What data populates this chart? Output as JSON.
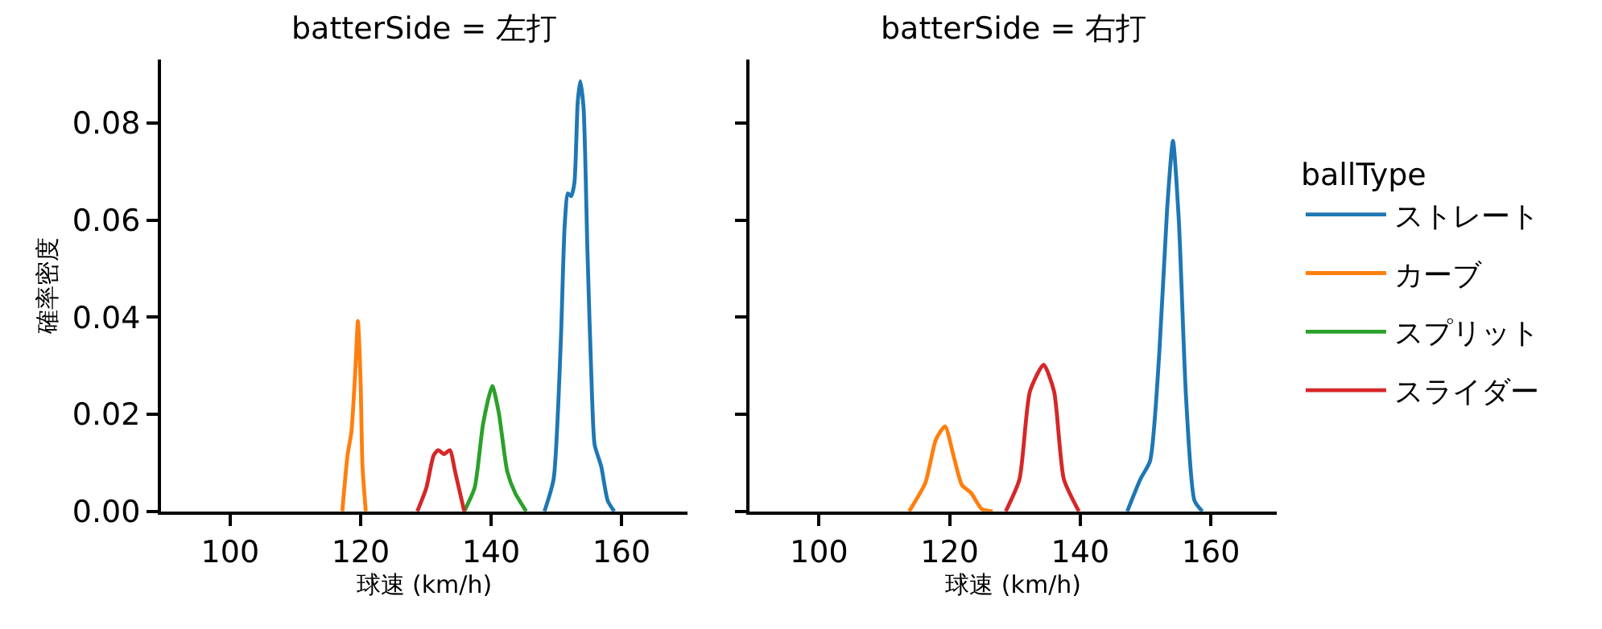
{
  "chart_data": [
    {
      "type": "line",
      "title": "batterSide = 左打",
      "xlabel": "球速 (km/h)",
      "ylabel": "確率密度",
      "xlim": [
        89.4,
        170.1
      ],
      "ylim": [
        0,
        0.093
      ],
      "xticks": [
        100,
        120,
        140,
        160
      ],
      "yticks": [
        {
          "value": 0,
          "label": "0.00"
        },
        {
          "value": 0.02,
          "label": "0.02"
        },
        {
          "value": 0.04,
          "label": "0.04"
        },
        {
          "value": 0.06,
          "label": "0.06"
        },
        {
          "value": 0.08,
          "label": "0.08"
        }
      ],
      "legend": "right",
      "series": [
        {
          "name": "ストレート",
          "color": "#1f77b4",
          "x": [
            148.2,
            149.6,
            150.7,
            151.3,
            151.8,
            152.3,
            152.8,
            153.3,
            153.7,
            154.2,
            154.8,
            155.5,
            155.9,
            156.9,
            157.9,
            158.9
          ],
          "values": [
            0,
            0.0066,
            0.0346,
            0.0588,
            0.0655,
            0.0649,
            0.0677,
            0.0842,
            0.0886,
            0.0831,
            0.0533,
            0.0236,
            0.0137,
            0.0093,
            0.0022,
            0
          ]
        },
        {
          "name": "カーブ",
          "color": "#ff7f0e",
          "x": [
            117.2,
            118.0,
            118.6,
            119.2,
            119.6,
            120.0,
            120.3,
            120.8
          ],
          "values": [
            0,
            0.0115,
            0.0164,
            0.029,
            0.0392,
            0.027,
            0.0093,
            0
          ]
        },
        {
          "name": "スプリット",
          "color": "#2ca02c",
          "x": [
            135.9,
            137.5,
            138.8,
            140.2,
            141.2,
            142.5,
            143.7,
            145.4
          ],
          "values": [
            0,
            0.0049,
            0.0181,
            0.0258,
            0.0203,
            0.0082,
            0.0038,
            0
          ]
        },
        {
          "name": "スライダー",
          "color": "#d62728",
          "x": [
            128.7,
            130.1,
            131.2,
            131.9,
            132.8,
            133.7,
            134.5,
            135.9
          ],
          "values": [
            0,
            0.0049,
            0.0115,
            0.0126,
            0.0118,
            0.0126,
            0.0082,
            0
          ]
        }
      ]
    },
    {
      "type": "line",
      "title": "batterSide = 右打",
      "xlabel": "球速 (km/h)",
      "xlim": [
        89.4,
        170.1
      ],
      "ylim": [
        0,
        0.093
      ],
      "xticks": [
        100,
        120,
        140,
        160
      ],
      "yticks": [
        {
          "value": 0,
          "label": null
        },
        {
          "value": 0.02,
          "label": null
        },
        {
          "value": 0.04,
          "label": null
        },
        {
          "value": 0.06,
          "label": null
        },
        {
          "value": 0.08,
          "label": null
        }
      ],
      "tick_labels": "x",
      "legend": "right",
      "legend_title": "ballType",
      "series": [
        {
          "name": "ストレート",
          "color": "#1f77b4",
          "x": [
            147.2,
            149.2,
            150.7,
            152.1,
            153.3,
            154.2,
            155.1,
            156.2,
            157.5,
            158.7
          ],
          "values": [
            0,
            0.0066,
            0.0104,
            0.0324,
            0.0621,
            0.0763,
            0.0599,
            0.0236,
            0.0022,
            0
          ]
        },
        {
          "name": "カーブ",
          "color": "#ff7f0e",
          "x": [
            113.8,
            116.3,
            117.9,
            119.3,
            120.6,
            121.9,
            123.3,
            124.9,
            126.6
          ],
          "values": [
            0,
            0.0059,
            0.0148,
            0.0175,
            0.0115,
            0.0054,
            0.0038,
            0.0005,
            0
          ]
        },
        {
          "name": "スライダー",
          "color": "#d62728",
          "x": [
            128.6,
            130.7,
            132.3,
            134.4,
            136.0,
            137.5,
            139.8
          ],
          "values": [
            0,
            0.0066,
            0.0247,
            0.0302,
            0.0247,
            0.0066,
            0
          ]
        }
      ]
    }
  ]
}
